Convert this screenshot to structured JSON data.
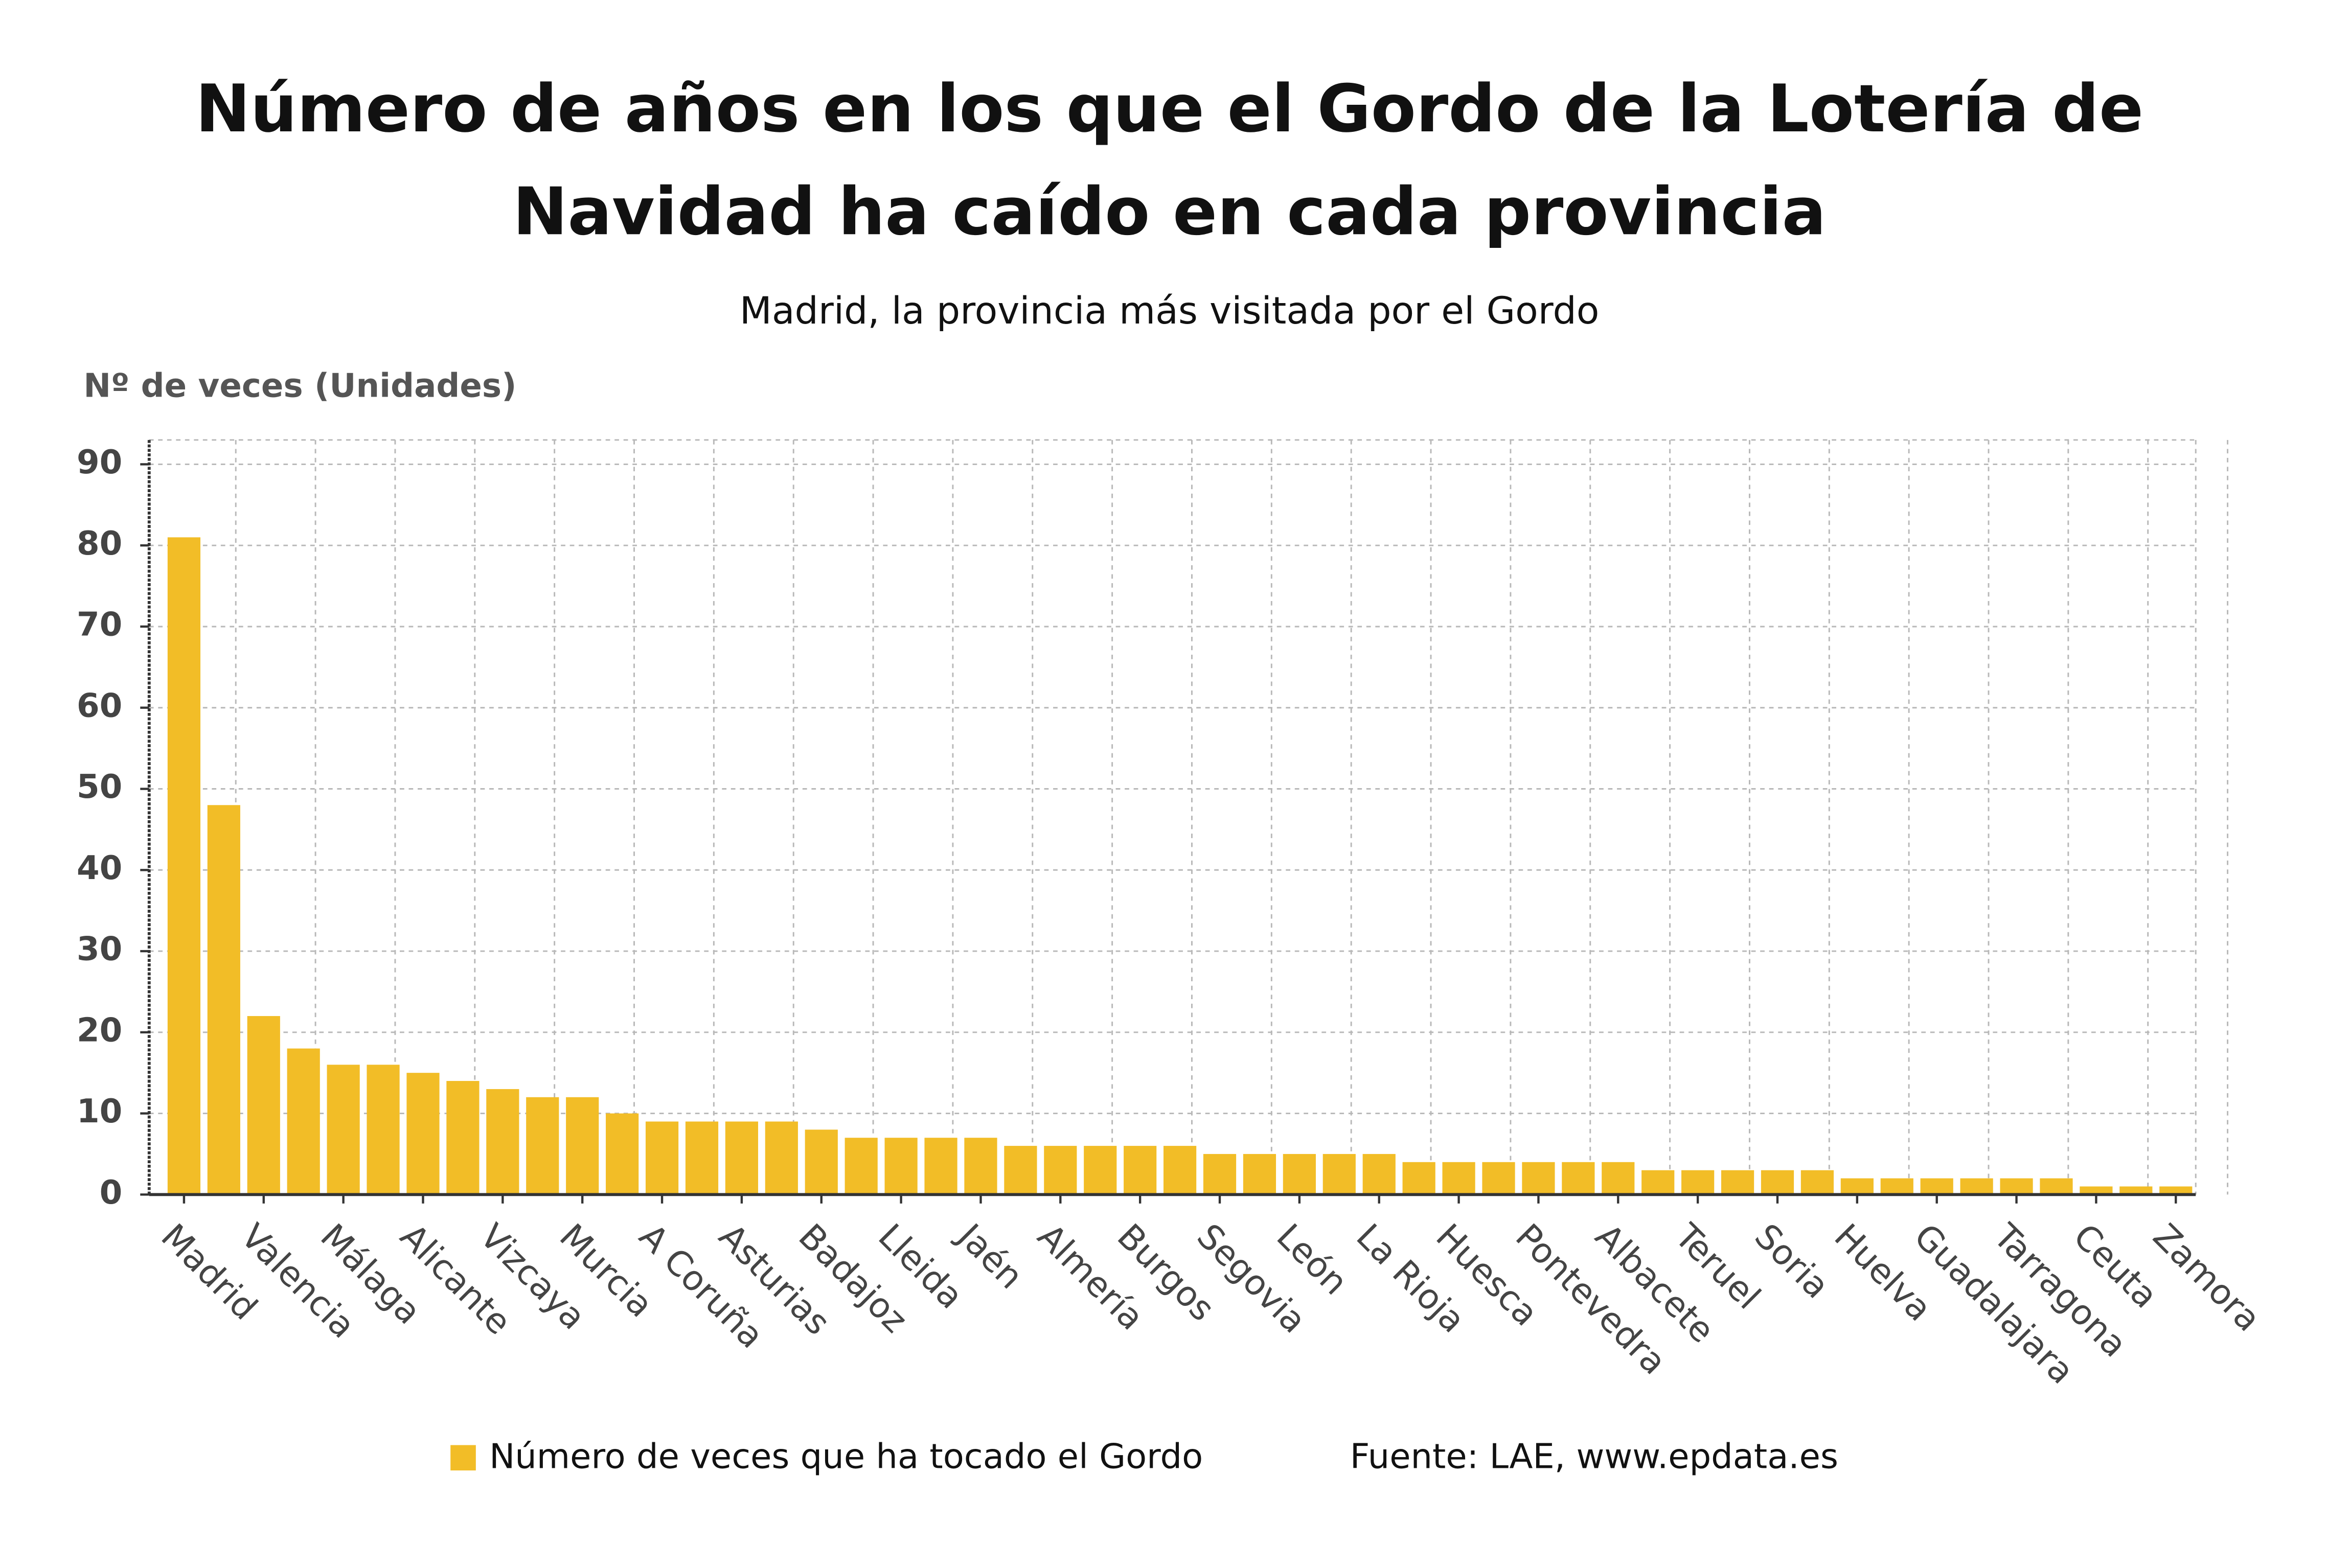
{
  "chart_data": {
    "type": "bar",
    "title": "Número de años en los que el Gordo de la Lotería de Navidad ha caído en cada provincia",
    "subtitle": "Madrid, la provincia más visitada por el Gordo",
    "y_label": "Nº de veces (Unidades)",
    "source": "Fuente: LAE, www.epdata.es",
    "categories": [
      "Madrid",
      null,
      "Valencia",
      null,
      "Málaga",
      null,
      "Alicante",
      null,
      "Vizcaya",
      null,
      "Murcia",
      null,
      "A Coruña",
      null,
      "Asturias",
      null,
      "Badajoz",
      null,
      "Lleida",
      null,
      "Jaén",
      null,
      "Almería",
      null,
      "Burgos",
      null,
      "Segovia",
      null,
      "León",
      null,
      "La Rioja",
      null,
      "Huesca",
      null,
      "Pontevedra",
      null,
      "Albacete",
      null,
      "Teruel",
      null,
      "Soria",
      null,
      "Huelva",
      null,
      "Guadalajara",
      null,
      "Tarragona",
      null,
      "Ceuta",
      null,
      "Zamora"
    ],
    "series": [
      {
        "name": "Número de veces que ha tocado el Gordo",
        "color": "#f2bd27",
        "values": [
          81,
          48,
          22,
          18,
          16,
          16,
          15,
          14,
          13,
          12,
          12,
          10,
          9,
          9,
          9,
          9,
          8,
          7,
          7,
          7,
          7,
          6,
          6,
          6,
          6,
          6,
          5,
          5,
          5,
          5,
          5,
          4,
          4,
          4,
          4,
          4,
          4,
          3,
          3,
          3,
          3,
          3,
          2,
          2,
          2,
          2,
          2,
          2,
          1,
          1,
          1
        ]
      }
    ],
    "ylim": [
      0,
      93
    ],
    "yticks": [
      0,
      10,
      20,
      30,
      40,
      50,
      60,
      70,
      80,
      90
    ],
    "grid": true
  }
}
